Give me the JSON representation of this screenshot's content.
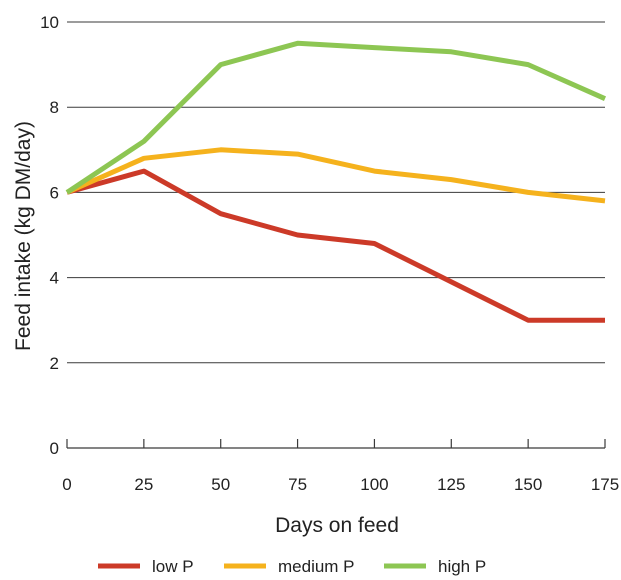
{
  "chart_data": {
    "type": "line",
    "title": "",
    "xlabel": "Days on feed",
    "ylabel": "Feed intake (kg DM/day)",
    "x": [
      0,
      25,
      50,
      75,
      100,
      125,
      150,
      175
    ],
    "x_ticks": [
      "0",
      "25",
      "50",
      "75",
      "100",
      "125",
      "150",
      "175"
    ],
    "y_ticks": [
      "0",
      "2",
      "4",
      "6",
      "8",
      "10"
    ],
    "xlim": [
      0,
      175
    ],
    "ylim": [
      0,
      10
    ],
    "grid": "horizontal",
    "legend_position": "bottom",
    "series": [
      {
        "name": "low P",
        "color": "#cc3a28",
        "values": [
          6.0,
          6.5,
          5.5,
          5.0,
          4.8,
          3.9,
          3.0,
          3.0
        ]
      },
      {
        "name": "medium P",
        "color": "#f5b21d",
        "values": [
          6.0,
          6.8,
          7.0,
          6.9,
          6.5,
          6.3,
          6.0,
          5.8
        ]
      },
      {
        "name": "high P",
        "color": "#8dc653",
        "values": [
          6.0,
          7.2,
          9.0,
          9.5,
          9.4,
          9.3,
          9.0,
          8.2
        ]
      }
    ]
  }
}
